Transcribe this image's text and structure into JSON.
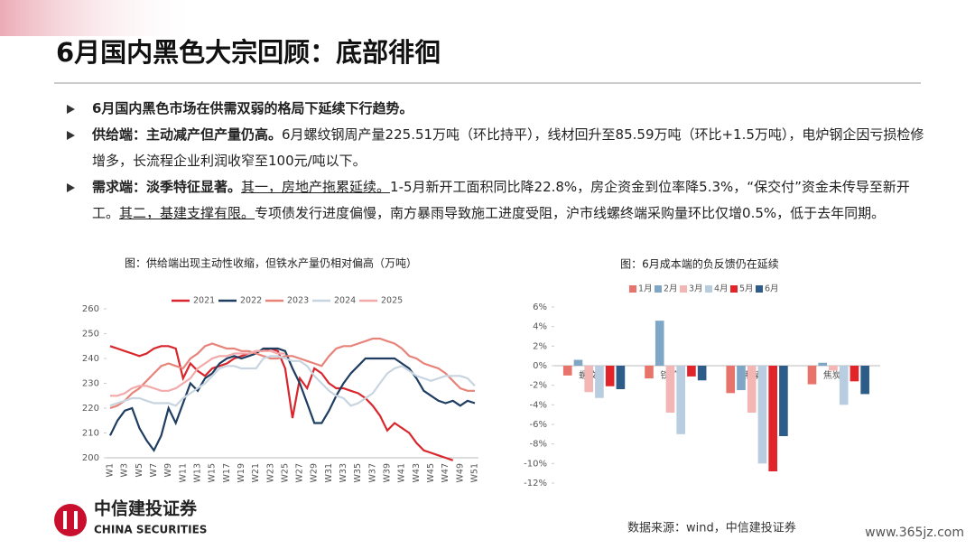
{
  "header": {
    "title": "6月国内黑色大宗回顾：底部徘徊"
  },
  "bullets": [
    [
      {
        "text": "6月国内黑色市场在供需双弱的格局下延续下行趋势。",
        "bold": true
      }
    ],
    [
      {
        "text": "供给端：主动减产但产量仍高。",
        "bold": true
      },
      {
        "text": "6月螺纹钢周产量225.51万吨（环比持平），线材回升至85.59万吨（环比+1.5万吨），电炉钢企因亏损检修增多，长流程企业利润收窄至100元/吨以下。"
      }
    ],
    [
      {
        "text": "需求端：淡季特征显著。",
        "bold": true
      },
      {
        "text": "其一，房地产拖累延续。",
        "underline": true
      },
      {
        "text": "1-5月新开工面积同比降22.8%，房企资金到位率降5.3%，“保交付”资金未传导至新开工。"
      },
      {
        "text": "其二，基建支撑有限。",
        "underline": true
      },
      {
        "text": "专项债发行进度偏慢，南方暴雨导致施工进度受阻，沪市线螺终端采购量环比仅增0.5%，低于去年同期。"
      }
    ]
  ],
  "chart_data": [
    {
      "type": "line",
      "title": "图：供给端出现主动性收缩，但铁水产量仍相对偏高（万吨）",
      "categories": [
        "W1",
        null,
        "W3",
        null,
        "W5",
        null,
        "W7",
        null,
        "W9",
        null,
        "W11",
        null,
        "W13",
        null,
        "W15",
        null,
        "W17",
        null,
        "W19",
        null,
        "W21",
        null,
        "W23",
        null,
        "W25",
        null,
        "W27",
        null,
        "W29",
        null,
        "W31",
        null,
        "W33",
        null,
        "W35",
        null,
        "W37",
        null,
        "W39",
        null,
        "W41",
        null,
        "W43",
        null,
        "W45",
        null,
        "W47",
        null,
        "W49",
        null,
        "W51"
      ],
      "series": [
        {
          "name": "2021",
          "color": "#d9262c",
          "values": [
            245,
            244,
            243,
            242,
            241,
            242,
            244,
            245,
            245,
            244,
            232,
            238,
            235,
            233,
            236,
            237,
            238,
            240,
            241,
            242,
            243,
            243,
            244,
            243,
            236,
            216,
            232,
            228,
            236,
            234,
            230,
            228,
            228,
            227,
            226,
            224,
            221,
            217,
            211,
            214,
            212,
            210,
            206,
            203,
            202,
            201,
            200,
            199,
            null,
            null,
            null
          ]
        },
        {
          "name": "2022",
          "color": "#1f3d60",
          "values": [
            209,
            215,
            219,
            220,
            212,
            207,
            203,
            209,
            220,
            214,
            222,
            230,
            227,
            232,
            234,
            238,
            240,
            241,
            240,
            241,
            242,
            244,
            244,
            244,
            243,
            236,
            230,
            222,
            214,
            214,
            219,
            225,
            230,
            234,
            237,
            240,
            240,
            240,
            240,
            240,
            238,
            236,
            232,
            227,
            225,
            223,
            222,
            223,
            221,
            223,
            222
          ]
        },
        {
          "name": "2023",
          "color": "#e8837a",
          "values": [
            220,
            221,
            223,
            226,
            228,
            231,
            234,
            237,
            238,
            237,
            236,
            240,
            242,
            245,
            246,
            245,
            244,
            244,
            243,
            243,
            242,
            241,
            240,
            240,
            241,
            241,
            240,
            239,
            238,
            237,
            241,
            244,
            245,
            245,
            246,
            247,
            248,
            248,
            247,
            246,
            244,
            241,
            240,
            238,
            237,
            236,
            234,
            231,
            228,
            227,
            227
          ]
        },
        {
          "name": "2024",
          "color": "#c8d5e0",
          "values": [
            221,
            222,
            223,
            224,
            224,
            223,
            222,
            222,
            222,
            221,
            224,
            226,
            228,
            230,
            233,
            236,
            237,
            237,
            236,
            236,
            236,
            240,
            241,
            241,
            240,
            239,
            239,
            237,
            233,
            230,
            227,
            225,
            224,
            221,
            222,
            224,
            226,
            230,
            234,
            236,
            237,
            235,
            233,
            232,
            231,
            232,
            233,
            233,
            233,
            232,
            229
          ]
        },
        {
          "name": "2025",
          "color": "#f3a9a9",
          "values": [
            225,
            225,
            226,
            228,
            229,
            229,
            228,
            227,
            227,
            228,
            230,
            232,
            236,
            238,
            240,
            241,
            241,
            242,
            242,
            242,
            243,
            243,
            243,
            242,
            242,
            null,
            null,
            null,
            null,
            null,
            null,
            null,
            null,
            null,
            null,
            null,
            null,
            null,
            null,
            null,
            null,
            null,
            null,
            null,
            null,
            null,
            null,
            null,
            null,
            null,
            null
          ]
        }
      ],
      "ylim": [
        200,
        260
      ],
      "yticks": [
        200,
        210,
        220,
        230,
        240,
        250,
        260
      ],
      "legend": "top"
    },
    {
      "type": "bar",
      "title": "图：6月成本端的负反馈仍在延续",
      "categories": [
        "螺纹",
        "铁矿",
        "焦煤",
        "焦炭"
      ],
      "series": [
        {
          "name": "1月",
          "color": "#e8736a",
          "values": [
            -1.0,
            -1.3,
            -2.8,
            -1.9
          ]
        },
        {
          "name": "2月",
          "color": "#7fa6c4",
          "values": [
            0.6,
            4.6,
            -2.5,
            0.3
          ]
        },
        {
          "name": "3月",
          "color": "#f4b6b4",
          "values": [
            -2.7,
            -4.8,
            -4.8,
            -0.5
          ]
        },
        {
          "name": "4月",
          "color": "#b8cde0",
          "values": [
            -3.3,
            -7.0,
            -10.0,
            -4.0
          ]
        },
        {
          "name": "5月",
          "color": "#e0242a",
          "values": [
            -2.1,
            -1.1,
            -10.8,
            -1.6
          ]
        },
        {
          "name": "6月",
          "color": "#2e5c88",
          "values": [
            -2.4,
            -1.5,
            -7.2,
            -2.9
          ]
        }
      ],
      "ylim": [
        -12,
        6
      ],
      "yticks": [
        {
          "value": -12,
          "label": "-12%"
        },
        {
          "value": -10,
          "label": "-10%"
        },
        {
          "value": -8,
          "label": "-8%"
        },
        {
          "value": -6,
          "label": "-6%"
        },
        {
          "value": -4,
          "label": "-4%"
        },
        {
          "value": -2,
          "label": "-2%"
        },
        {
          "value": 0,
          "label": "0%"
        },
        {
          "value": 2,
          "label": "2%"
        },
        {
          "value": 4,
          "label": "4%"
        },
        {
          "value": 6,
          "label": "6%"
        }
      ],
      "legend": "top"
    }
  ],
  "footer": {
    "source": "数据来源：wind，中信建投证券",
    "logo_cn": "中信建投证券",
    "logo_en": "CHINA SECURITIES",
    "watermark": "www.365jz.com"
  }
}
